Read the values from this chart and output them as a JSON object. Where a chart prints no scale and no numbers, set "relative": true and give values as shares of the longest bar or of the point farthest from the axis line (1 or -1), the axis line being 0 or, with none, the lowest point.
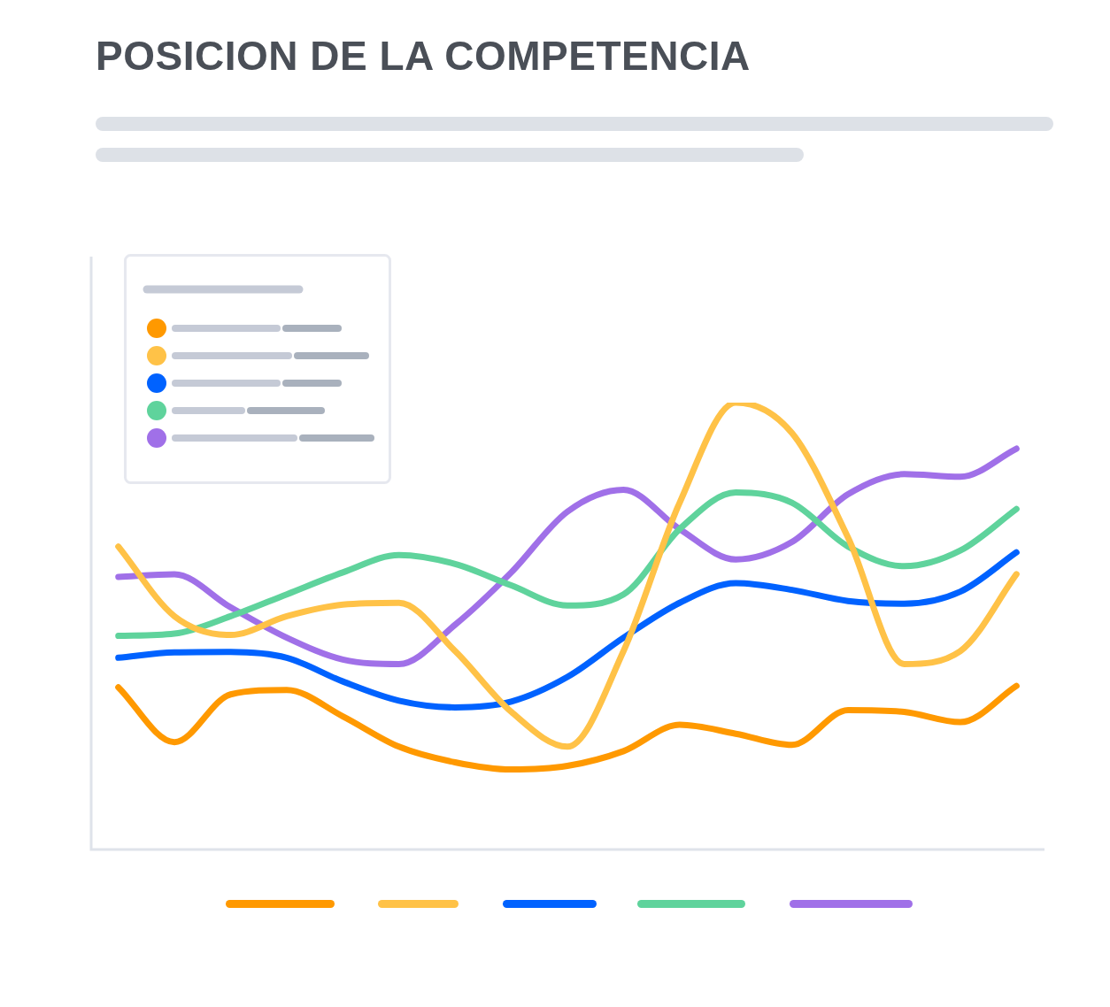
{
  "chart_data": {
    "type": "line",
    "title": "POSICION DE LA COMPETENCIA",
    "relative": true,
    "categories": [
      null,
      null,
      null,
      null,
      null,
      null,
      null,
      null,
      null,
      null,
      null,
      null,
      null,
      null,
      null,
      null,
      null
    ],
    "series": [
      {
        "color": "#ff9900",
        "values": [
          0.363,
          0.24,
          0.347,
          0.357,
          0.298,
          0.23,
          0.195,
          0.179,
          0.187,
          0.22,
          0.279,
          0.259,
          0.234,
          0.312,
          0.308,
          0.285,
          0.366
        ]
      },
      {
        "color": "#ffc247",
        "values": [
          0.678,
          0.522,
          0.48,
          0.522,
          0.548,
          0.552,
          0.444,
          0.308,
          0.23,
          0.444,
          0.776,
          1,
          0.932,
          0.698,
          0.415,
          0.444,
          0.616
        ]
      },
      {
        "color": "#0062ff",
        "values": [
          0.429,
          0.441,
          0.442,
          0.429,
          0.376,
          0.333,
          0.318,
          0.331,
          0.386,
          0.474,
          0.552,
          0.596,
          0.581,
          0.556,
          0.55,
          0.577,
          0.665
        ]
      },
      {
        "color": "#5fd39c",
        "values": [
          0.478,
          0.483,
          0.522,
          0.571,
          0.62,
          0.659,
          0.639,
          0.591,
          0.546,
          0.571,
          0.717,
          0.799,
          0.776,
          0.678,
          0.634,
          0.669,
          0.762
        ]
      },
      {
        "color": "#a070e8",
        "values": [
          0.61,
          0.616,
          0.542,
          0.474,
          0.425,
          0.415,
          0.503,
          0.62,
          0.756,
          0.805,
          0.717,
          0.649,
          0.688,
          0.795,
          0.84,
          0.834,
          0.897
        ]
      }
    ]
  }
}
